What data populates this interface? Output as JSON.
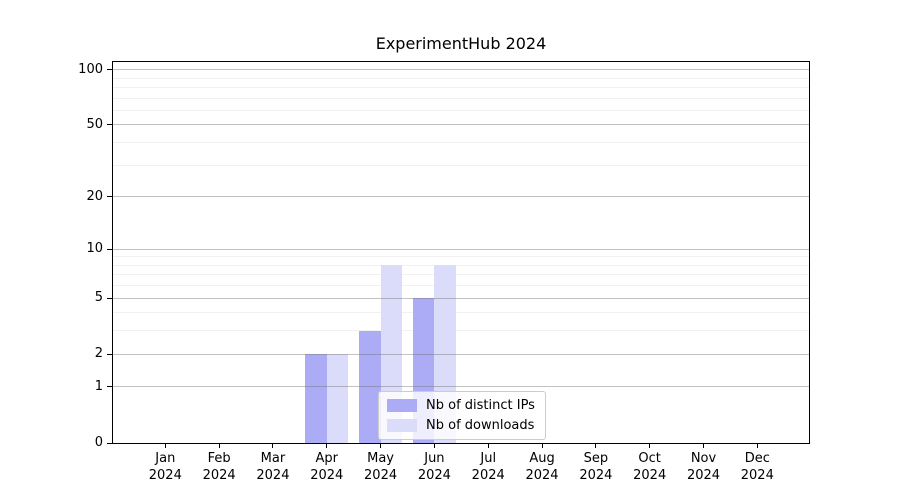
{
  "title": "ExperimentHub 2024",
  "legend": {
    "items": [
      {
        "label": "Nb of distinct IPs",
        "color": "#acacf6"
      },
      {
        "label": "Nb of downloads",
        "color": "#dbdbfa"
      }
    ]
  },
  "chart_data": {
    "type": "bar",
    "title": "ExperimentHub 2024",
    "categories": [
      "Jan",
      "Feb",
      "Mar",
      "Apr",
      "May",
      "Jun",
      "Jul",
      "Aug",
      "Sep",
      "Oct",
      "Nov",
      "Dec"
    ],
    "category_year": "2024",
    "series": [
      {
        "name": "Nb of distinct IPs",
        "color": "#acacf6",
        "values": [
          0,
          0,
          0,
          2,
          3,
          5,
          0,
          0,
          0,
          0,
          0,
          0
        ]
      },
      {
        "name": "Nb of downloads",
        "color": "#dbdbfa",
        "values": [
          0,
          0,
          0,
          2,
          8,
          8,
          0,
          0,
          0,
          0,
          0,
          0
        ]
      }
    ],
    "y_axis": {
      "scale": "log1p",
      "max": 110,
      "ticks": [
        100,
        50,
        20,
        10,
        5,
        2,
        1,
        0
      ],
      "minor_ticks": [
        3,
        4,
        6,
        7,
        8,
        9,
        30,
        40,
        60,
        70,
        80,
        90
      ]
    },
    "grid": true,
    "legend_position": "lower center"
  }
}
